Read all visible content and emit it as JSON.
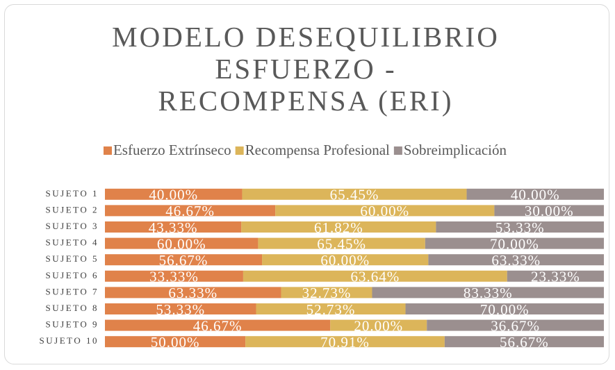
{
  "chart_data": {
    "type": "bar_stacked_100_horizontal",
    "title": "MODELO DESEQUILIBRIO ESFUERZO - RECOMPENSA (ERI)",
    "categories": [
      "SUJETO 1",
      "SUJETO 2",
      "SUJETO 3",
      "SUJETO 4",
      "SUJETO 5",
      "SUJETO 6",
      "SUJETO 7",
      "SUJETO 8",
      "SUJETO 9",
      "SUJETO 10"
    ],
    "series": [
      {
        "name": "Esfuerzo Extrínseco",
        "color": "#e0824a",
        "values": [
          40,
          46.67,
          43.33,
          60,
          56.67,
          33.33,
          63.33,
          53.33,
          46.67,
          50
        ],
        "value_labels": [
          "40.00%",
          "46.67%",
          "43.33%",
          "60.00%",
          "56.67%",
          "33.33%",
          "63.33%",
          "53.33%",
          "46.67%",
          "50.00%"
        ]
      },
      {
        "name": "Recompensa Profesional",
        "color": "#dcb55a",
        "values": [
          65.45,
          60,
          61.82,
          65.45,
          60,
          63.64,
          32.73,
          52.73,
          20,
          70.91
        ],
        "value_labels": [
          "65.45%",
          "60.00%",
          "61.82%",
          "65.45%",
          "60.00%",
          "63.64%",
          "32.73%",
          "52.73%",
          "20.00%",
          "70.91%"
        ]
      },
      {
        "name": "Sobreimplicación",
        "color": "#9b8f8f",
        "values": [
          40,
          30,
          53.33,
          70,
          63.33,
          23.33,
          83.33,
          70,
          36.67,
          56.67
        ],
        "value_labels": [
          "40.00%",
          "30.00%",
          "53.33%",
          "70.00%",
          "63.33%",
          "23.33%",
          "83.33%",
          "70.00%",
          "36.67%",
          "56.67%"
        ]
      }
    ],
    "legend": "top"
  }
}
